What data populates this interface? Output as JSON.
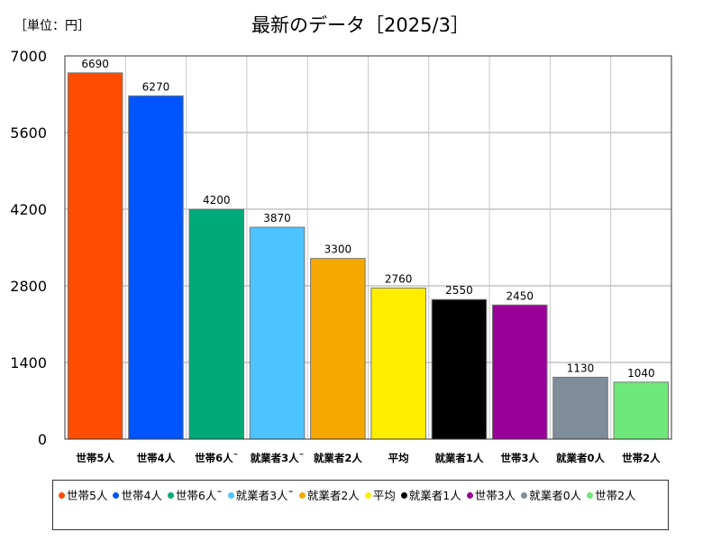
{
  "unit_label": "［単位：円］",
  "chart_data": {
    "type": "bar",
    "title": "最新のデータ［2025/3］",
    "categories": [
      "世帯5人",
      "世帯4人",
      "世帯6人˜",
      "就業者3人˜",
      "就業者2人",
      "平均",
      "就業者1人",
      "世帯3人",
      "就業者0人",
      "世帯2人"
    ],
    "values": [
      6690,
      6270,
      4200,
      3870,
      3300,
      2760,
      2550,
      2450,
      1130,
      1040
    ],
    "colors": [
      "#ff4d00",
      "#0055ff",
      "#00aa77",
      "#4dc3ff",
      "#f5a800",
      "#ffee00",
      "#000000",
      "#990099",
      "#7f8c99",
      "#6ee87a"
    ],
    "yticks": [
      0,
      1400,
      2800,
      4200,
      5600,
      7000
    ],
    "ylim": [
      0,
      7000
    ],
    "grid": true,
    "legend_position": "bottom",
    "legend": [
      "世帯5人",
      "世帯4人",
      "世帯6人˜",
      "就業者3人˜",
      "就業者2人",
      "平均",
      "就業者1人",
      "世帯3人",
      "就業者0人",
      "世帯2人"
    ]
  }
}
